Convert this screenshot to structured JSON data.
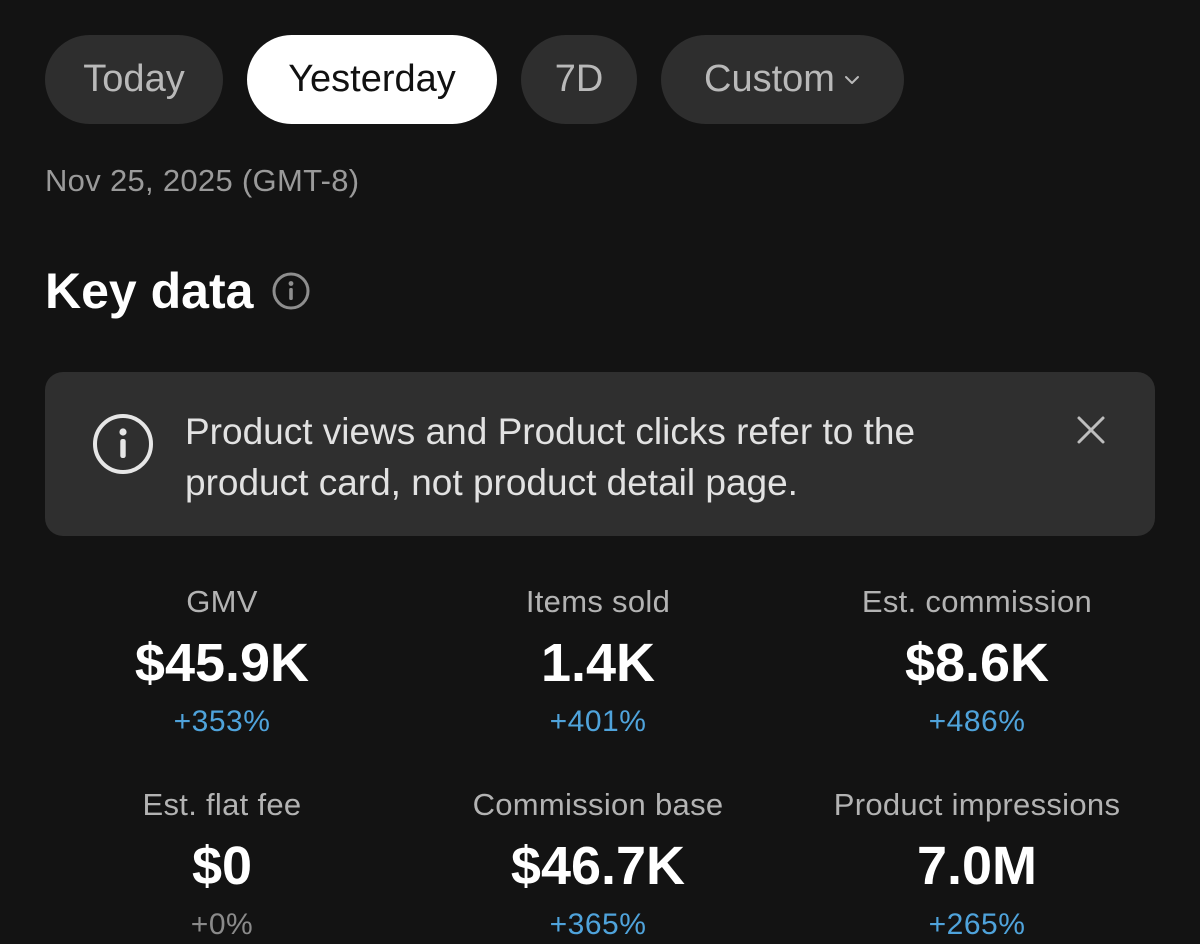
{
  "date_range": {
    "chips": [
      {
        "label": "Today",
        "active": false
      },
      {
        "label": "Yesterday",
        "active": true
      },
      {
        "label": "7D",
        "active": false
      },
      {
        "label": "Custom",
        "active": false
      }
    ],
    "date_label": "Nov 25, 2025 (GMT-8)"
  },
  "section": {
    "title": "Key data",
    "info_icon": "info-circle-icon"
  },
  "notice": {
    "icon": "info-circle-icon",
    "line1": "Product views and Product clicks refer to the",
    "line2": "product card, not product detail page.",
    "close_icon": "close-icon"
  },
  "metrics": [
    {
      "label": "GMV",
      "value": "$45.9K",
      "change": "+353%"
    },
    {
      "label": "Items sold",
      "value": "1.4K",
      "change": "+401%"
    },
    {
      "label": "Est. commission",
      "value": "$8.6K",
      "change": "+486%"
    },
    {
      "label": "Est. flat fee",
      "value": "$0",
      "change": "+0%"
    },
    {
      "label": "Commission base",
      "value": "$46.7K",
      "change": "+365%"
    },
    {
      "label": "Product impressions",
      "value": "7.0M",
      "change": "+265%"
    }
  ],
  "colors": {
    "background": "#131313",
    "chip_bg": "#2e2e2e",
    "chip_active_bg": "#ffffff",
    "positive_change": "#4fa3db",
    "neutral_change": "#8a8a8a"
  }
}
